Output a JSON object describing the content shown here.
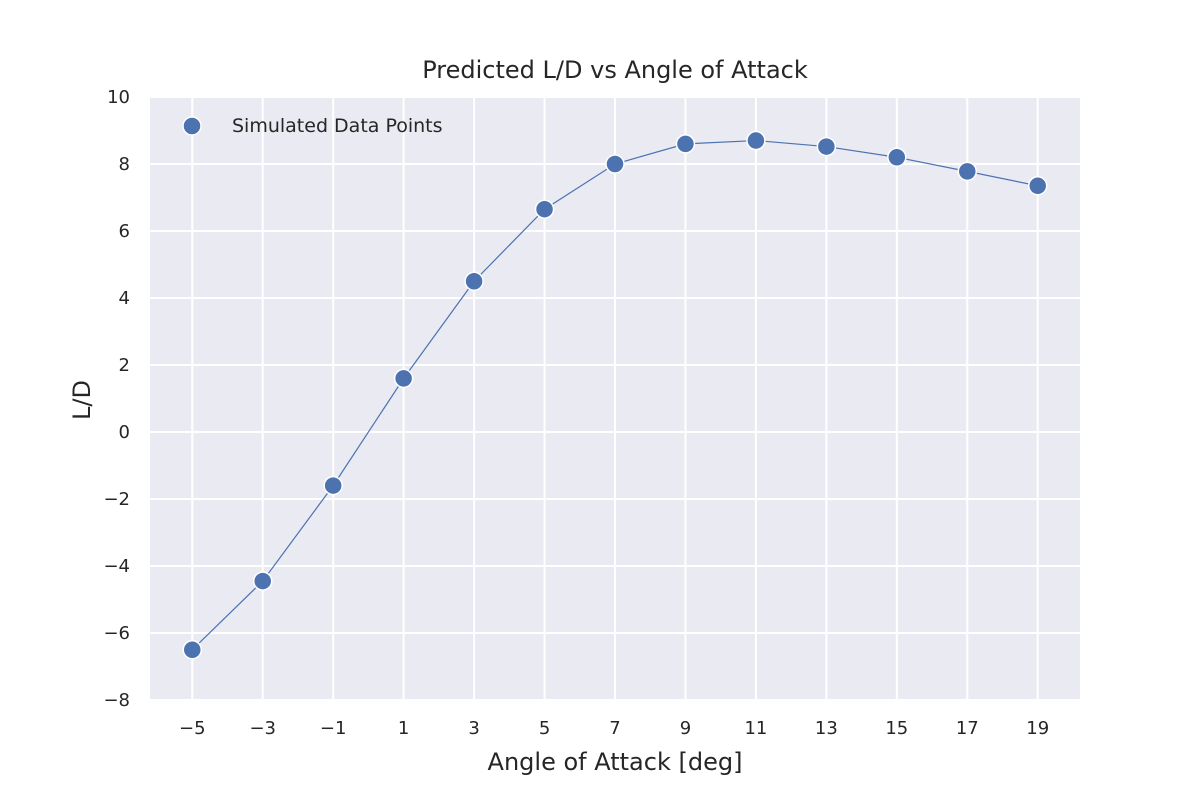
{
  "chart_data": {
    "type": "line",
    "title": "Predicted L/D vs Angle of Attack",
    "xlabel": "Angle of Attack [deg]",
    "ylabel": "L/D",
    "xlim": [
      -6.2,
      20.2
    ],
    "ylim": [
      -8,
      10
    ],
    "x_ticks": [
      -5,
      -3,
      -1,
      1,
      3,
      5,
      7,
      9,
      11,
      13,
      15,
      17,
      19
    ],
    "x_tick_labels": [
      "−5",
      "−3",
      "−1",
      "1",
      "3",
      "5",
      "7",
      "9",
      "11",
      "13",
      "15",
      "17",
      "19"
    ],
    "y_ticks": [
      -8,
      -6,
      -4,
      -2,
      0,
      2,
      4,
      6,
      8,
      10
    ],
    "y_tick_labels": [
      "−8",
      "−6",
      "−4",
      "−2",
      "0",
      "2",
      "4",
      "6",
      "8",
      "10"
    ],
    "grid": true,
    "legend_position": "top-left",
    "series": [
      {
        "name": "Simulated Data Points",
        "color": "#4c72b0",
        "markers": true,
        "x": [
          -5,
          -3,
          -1,
          1,
          3,
          5,
          7,
          9,
          11,
          13,
          15,
          17,
          19
        ],
        "y": [
          -6.5,
          -4.45,
          -1.6,
          1.6,
          4.5,
          6.65,
          8.0,
          8.6,
          8.7,
          8.52,
          8.2,
          7.78,
          7.35
        ]
      }
    ],
    "colors": {
      "plot_background": "#eaeaf2",
      "grid": "#ffffff",
      "text": "#262626"
    }
  }
}
